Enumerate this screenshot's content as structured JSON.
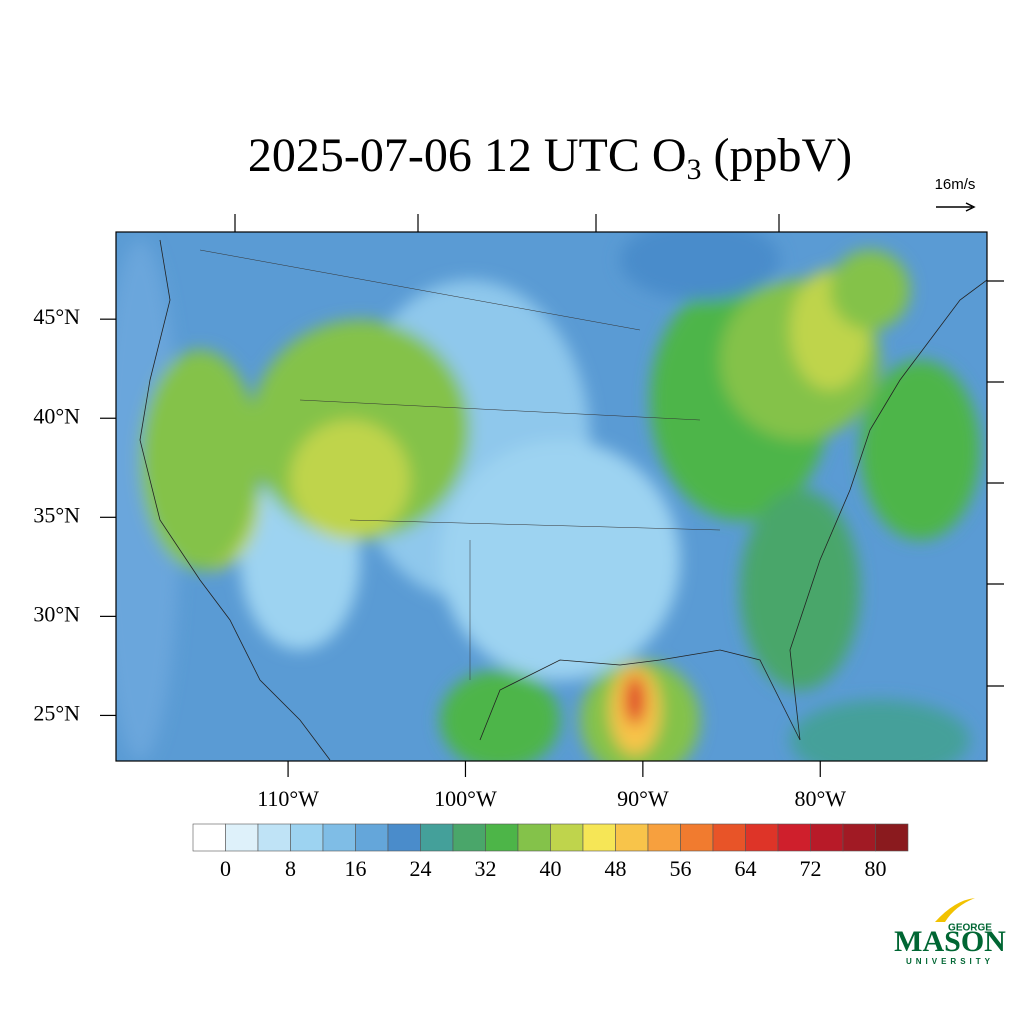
{
  "chart_data": {
    "type": "map",
    "title": {
      "main": "2025-07-06 12 UTC O",
      "subscript": "3",
      "unit": "(ppbV)"
    },
    "xlim": [
      -119.7,
      -70.6
    ],
    "ylim": [
      22.7,
      49.4
    ],
    "xticks": [
      {
        "value": -110,
        "label": "110°W"
      },
      {
        "value": -100,
        "label": "100°W"
      },
      {
        "value": -90,
        "label": "90°W"
      },
      {
        "value": -80,
        "label": "80°W"
      }
    ],
    "yticks": [
      {
        "value": 45,
        "label": "45°N"
      },
      {
        "value": 40,
        "label": "40°N"
      },
      {
        "value": 35,
        "label": "35°N"
      },
      {
        "value": 30,
        "label": "30°N"
      },
      {
        "value": 25,
        "label": "25°N"
      }
    ],
    "vector_reference": "16m/s",
    "colorbar": {
      "levels": [
        0,
        4,
        8,
        12,
        16,
        20,
        24,
        28,
        32,
        36,
        40,
        44,
        48,
        52,
        56,
        60,
        64,
        68,
        72,
        76,
        80
      ],
      "ticks": [
        0,
        8,
        16,
        24,
        32,
        40,
        48,
        56,
        64,
        72,
        80
      ],
      "colors": [
        "#ffffff",
        "#def1fa",
        "#bfe3f6",
        "#9dd3f1",
        "#7fbde6",
        "#64a6da",
        "#4a8ccb",
        "#44a09a",
        "#4aa66a",
        "#4db548",
        "#84c24a",
        "#bfd44c",
        "#f6e656",
        "#f8c44a",
        "#f7a03e",
        "#f17b2f",
        "#e85428",
        "#de3428",
        "#cf1f2c",
        "#b81a28",
        "#a11a24",
        "#8a1a1e"
      ]
    }
  },
  "logo": {
    "top": "GEORGE",
    "middle": "MASON",
    "bottom": "UNIVERSITY"
  }
}
